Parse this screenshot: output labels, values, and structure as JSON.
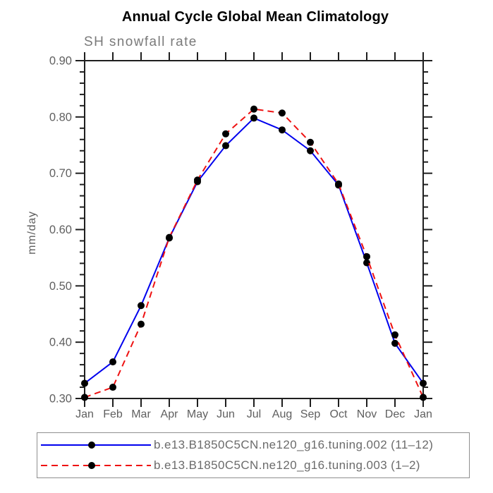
{
  "chart_data": {
    "type": "line",
    "title": "Annual Cycle Global Mean Climatology",
    "subtitle": "SH snowfall rate",
    "ylabel": "mm/day",
    "x": [
      "Jan",
      "Feb",
      "Mar",
      "Apr",
      "May",
      "Jun",
      "Jul",
      "Aug",
      "Sep",
      "Oct",
      "Nov",
      "Dec",
      "Jan"
    ],
    "ylim": [
      0.3,
      0.9
    ],
    "ytick_major": 0.1,
    "ytick_minor": 0.02,
    "ytick_labels": [
      "0.90",
      "0.80",
      "0.70",
      "0.60",
      "0.50",
      "0.40",
      "0.30"
    ],
    "grid": false,
    "legend_position": "bottom",
    "axis_color": "#1f1f1f",
    "tick_label_color": "#5f5f5f",
    "marker_color": "#000000",
    "series": [
      {
        "name": "b.e13.B1850C5CN.ne120_g16.tuning.002 (11–12)",
        "color": "#0000ee",
        "style": "solid",
        "dash": "none",
        "marker": "filled-black-circle",
        "values": [
          0.327,
          0.365,
          0.465,
          0.585,
          0.685,
          0.749,
          0.798,
          0.777,
          0.74,
          0.679,
          0.541,
          0.398,
          0.327
        ]
      },
      {
        "name": "b.e13.B1850C5CN.ne120_g16.tuning.003 (1–2)",
        "color": "#ee1111",
        "style": "dashed",
        "dash": "9 6",
        "marker": "filled-black-circle",
        "values": [
          0.302,
          0.32,
          0.432,
          0.586,
          0.688,
          0.77,
          0.814,
          0.807,
          0.755,
          0.681,
          0.552,
          0.413,
          0.302
        ]
      }
    ]
  }
}
